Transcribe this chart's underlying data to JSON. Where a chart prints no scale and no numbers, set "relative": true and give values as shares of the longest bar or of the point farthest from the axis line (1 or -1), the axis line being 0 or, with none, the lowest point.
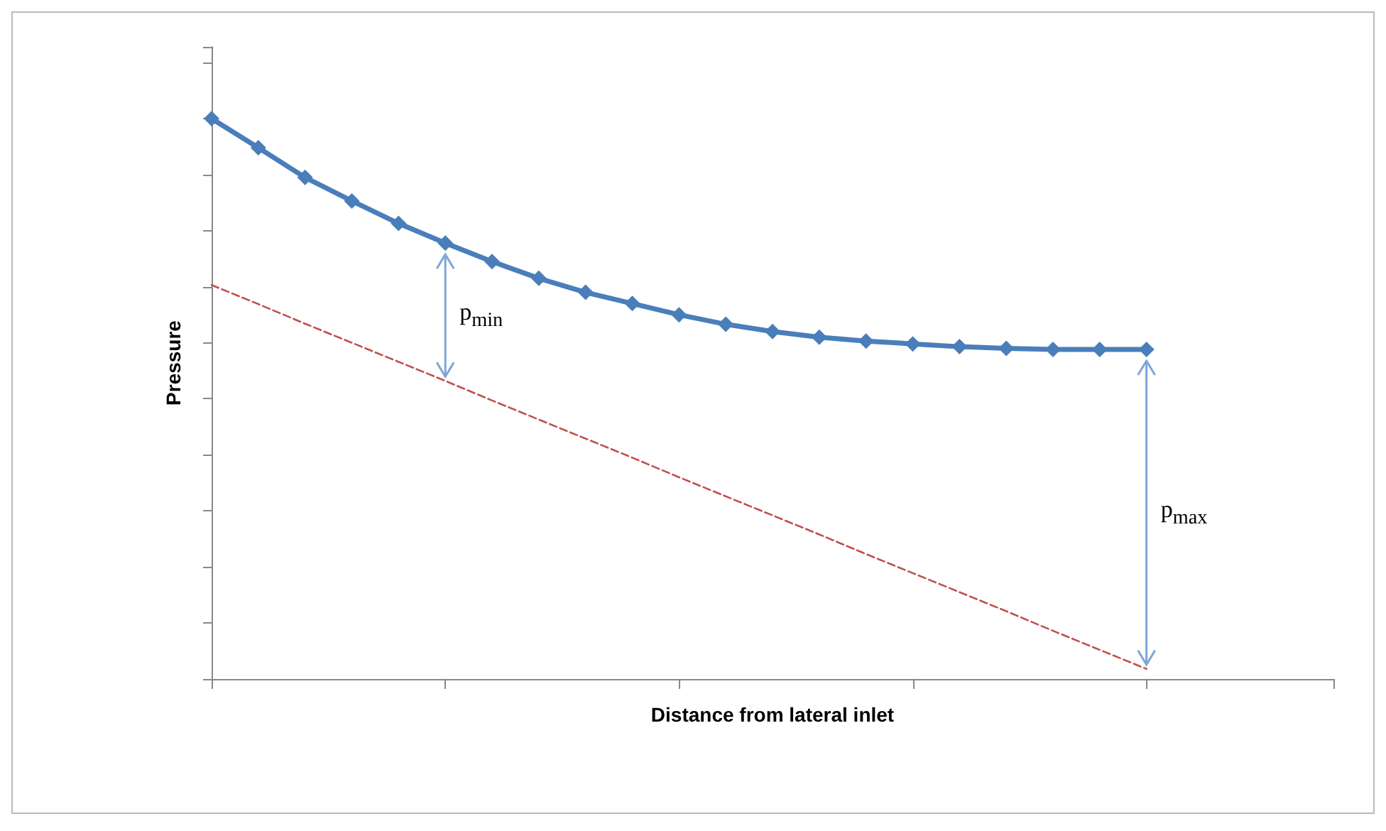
{
  "chart_data": {
    "type": "line",
    "relative": true,
    "xlabel": "Distance from lateral inlet",
    "ylabel": "Pressure",
    "categories": [
      null,
      null,
      null,
      null,
      null,
      null,
      null,
      null,
      null,
      null,
      null,
      null,
      null,
      null,
      null,
      null,
      null,
      null,
      null,
      null,
      null,
      null,
      null,
      null,
      null
    ],
    "series": [
      {
        "color": "#4a7ebb",
        "marker": "diamond",
        "line_style": "solid",
        "values": [
          1.0,
          0.948,
          0.895,
          0.853,
          0.813,
          0.778,
          0.745,
          0.715,
          0.69,
          0.67,
          0.65,
          0.633,
          0.62,
          0.61,
          0.603,
          0.598,
          0.593,
          0.59,
          0.588,
          0.588,
          0.588,
          null,
          null,
          null,
          null
        ]
      },
      {
        "color": "#c0504d",
        "marker": "none",
        "line_style": "dashed",
        "values": [
          0.703,
          0.669,
          0.634,
          0.6,
          0.566,
          0.532,
          0.497,
          0.463,
          0.429,
          0.395,
          0.36,
          0.326,
          0.292,
          0.258,
          0.223,
          0.189,
          0.155,
          0.121,
          0.086,
          0.052,
          0.018,
          null,
          null,
          null,
          null
        ]
      }
    ],
    "annotations": [
      "p$_{min}$",
      "p$_{max}$"
    ],
    "grid": false
  }
}
